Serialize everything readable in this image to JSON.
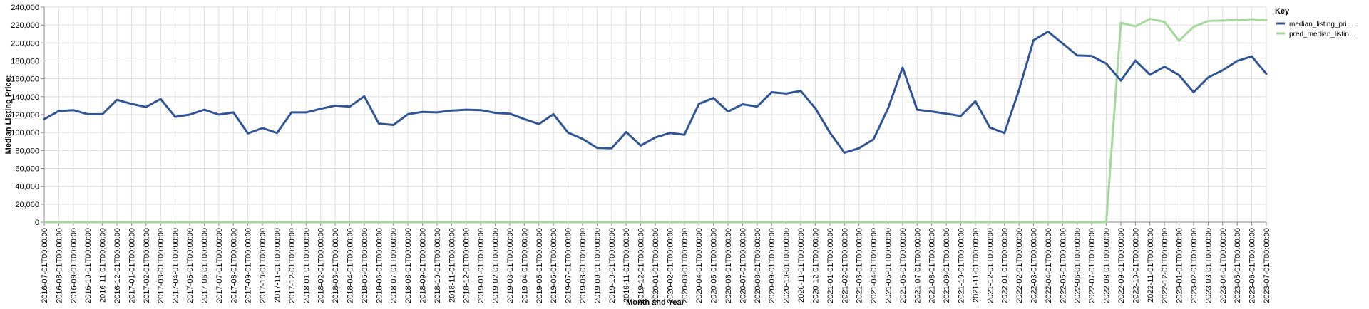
{
  "chart_data": {
    "type": "line",
    "title": "",
    "xlabel": "Month and Year",
    "ylabel": "Median Listing Price:",
    "ylim": [
      0,
      240000
    ],
    "yticks": [
      0,
      20000,
      40000,
      60000,
      80000,
      100000,
      120000,
      140000,
      160000,
      180000,
      200000,
      220000,
      240000
    ],
    "ytick_labels": [
      "0",
      "20,000",
      "40,000",
      "60,000",
      "80,000",
      "100,000",
      "120,000",
      "140,000",
      "160,000",
      "180,000",
      "200,000",
      "220,000",
      "240,000"
    ],
    "grid": true,
    "legend": {
      "title": "Key",
      "position": "right",
      "entries": [
        {
          "label": "median_listing_pri…",
          "color": "#2f5597"
        },
        {
          "label": "pred_median_listin…",
          "color": "#a3d99a"
        }
      ]
    },
    "x": [
      "2016-07-01T00:00:00",
      "2016-08-01T00:00:00",
      "2016-09-01T00:00:00",
      "2016-10-01T00:00:00",
      "2016-11-01T00:00:00",
      "2016-12-01T00:00:00",
      "2017-01-01T00:00:00",
      "2017-02-01T00:00:00",
      "2017-03-01T00:00:00",
      "2017-04-01T00:00:00",
      "2017-05-01T00:00:00",
      "2017-06-01T00:00:00",
      "2017-07-01T00:00:00",
      "2017-08-01T00:00:00",
      "2017-09-01T00:00:00",
      "2017-10-01T00:00:00",
      "2017-11-01T00:00:00",
      "2017-12-01T00:00:00",
      "2018-01-01T00:00:00",
      "2018-02-01T00:00:00",
      "2018-03-01T00:00:00",
      "2018-04-01T00:00:00",
      "2018-05-01T00:00:00",
      "2018-06-01T00:00:00",
      "2018-07-01T00:00:00",
      "2018-08-01T00:00:00",
      "2018-09-01T00:00:00",
      "2018-10-01T00:00:00",
      "2018-11-01T00:00:00",
      "2018-12-01T00:00:00",
      "2019-01-01T00:00:00",
      "2019-02-01T00:00:00",
      "2019-03-01T00:00:00",
      "2019-04-01T00:00:00",
      "2019-05-01T00:00:00",
      "2019-06-01T00:00:00",
      "2019-07-01T00:00:00",
      "2019-08-01T00:00:00",
      "2019-09-01T00:00:00",
      "2019-10-01T00:00:00",
      "2019-11-01T00:00:00",
      "2019-12-01T00:00:00",
      "2020-01-01T00:00:00",
      "2020-02-01T00:00:00",
      "2020-03-01T00:00:00",
      "2020-04-01T00:00:00",
      "2020-05-01T00:00:00",
      "2020-06-01T00:00:00",
      "2020-07-01T00:00:00",
      "2020-08-01T00:00:00",
      "2020-09-01T00:00:00",
      "2020-10-01T00:00:00",
      "2020-11-01T00:00:00",
      "2020-12-01T00:00:00",
      "2021-01-01T00:00:00",
      "2021-02-01T00:00:00",
      "2021-03-01T00:00:00",
      "2021-04-01T00:00:00",
      "2021-05-01T00:00:00",
      "2021-06-01T00:00:00",
      "2021-07-01T00:00:00",
      "2021-08-01T00:00:00",
      "2021-09-01T00:00:00",
      "2021-10-01T00:00:00",
      "2021-11-01T00:00:00",
      "2021-12-01T00:00:00",
      "2022-01-01T00:00:00",
      "2022-02-01T00:00:00",
      "2022-03-01T00:00:00",
      "2022-04-01T00:00:00",
      "2022-05-01T00:00:00",
      "2022-06-01T00:00:00",
      "2022-07-01T00:00:00",
      "2022-08-01T00:00:00",
      "2022-09-01T00:00:00",
      "2022-10-01T00:00:00",
      "2022-11-01T00:00:00",
      "2022-12-01T00:00:00",
      "2023-01-01T00:00:00",
      "2023-02-01T00:00:00",
      "2023-03-01T00:00:00",
      "2023-04-01T00:00:00",
      "2023-05-01T00:00:00",
      "2023-06-01T00:00:00",
      "2023-07-01T00:00:00"
    ],
    "series": [
      {
        "name": "median_listing_pri…",
        "color": "#2f5597",
        "values": [
          115000,
          124000,
          125000,
          120500,
          120500,
          136500,
          132000,
          128500,
          137500,
          117500,
          120000,
          125500,
          120000,
          122500,
          99000,
          105000,
          99500,
          122500,
          122500,
          126500,
          130000,
          129000,
          140500,
          110000,
          108500,
          120500,
          123000,
          122500,
          124500,
          125500,
          125000,
          122000,
          121000,
          115000,
          109500,
          120500,
          100000,
          93000,
          83000,
          82500,
          100500,
          85500,
          94500,
          99500,
          97500,
          132000,
          138500,
          123500,
          131500,
          129000,
          145000,
          143500,
          146500,
          127000,
          100000,
          77500,
          82500,
          92500,
          127000,
          172500,
          125500,
          123500,
          121000,
          118500,
          135000,
          105500,
          99500,
          147500,
          203000,
          212500,
          199500,
          186000,
          185500,
          177000,
          158000,
          180500,
          164500,
          173500,
          164000,
          145000,
          161500,
          169500,
          180000,
          185000,
          165500
        ]
      },
      {
        "name": "pred_median_listin…",
        "color": "#a3d99a",
        "values": [
          0,
          0,
          0,
          0,
          0,
          0,
          0,
          0,
          0,
          0,
          0,
          0,
          0,
          0,
          0,
          0,
          0,
          0,
          0,
          0,
          0,
          0,
          0,
          0,
          0,
          0,
          0,
          0,
          0,
          0,
          0,
          0,
          0,
          0,
          0,
          0,
          0,
          0,
          0,
          0,
          0,
          0,
          0,
          0,
          0,
          0,
          0,
          0,
          0,
          0,
          0,
          0,
          0,
          0,
          0,
          0,
          0,
          0,
          0,
          0,
          0,
          0,
          0,
          0,
          0,
          0,
          0,
          0,
          0,
          0,
          0,
          0,
          0,
          0,
          222500,
          218500,
          227000,
          223500,
          202500,
          218000,
          224500,
          225000,
          225500,
          226500,
          225500
        ]
      }
    ]
  }
}
